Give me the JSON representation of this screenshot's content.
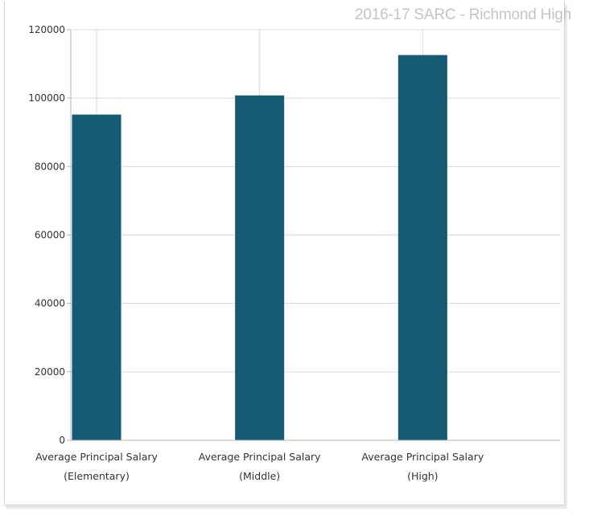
{
  "watermark": "2016-17 SARC - Richmond High",
  "colors": {
    "bar": "#145b73",
    "grid": "#d9d9d9",
    "axis": "#b5b5b5"
  },
  "chart_data": {
    "type": "bar",
    "categories": [
      [
        "Average Principal Salary",
        "(Elementary)"
      ],
      [
        "Average Principal Salary",
        "(Middle)"
      ],
      [
        "Average Principal Salary",
        "(High)"
      ]
    ],
    "values": [
      95200,
      100800,
      112600
    ],
    "ylim": [
      0,
      120000
    ],
    "yticks": [
      0,
      20000,
      40000,
      60000,
      80000,
      100000,
      120000
    ],
    "grid": true
  }
}
